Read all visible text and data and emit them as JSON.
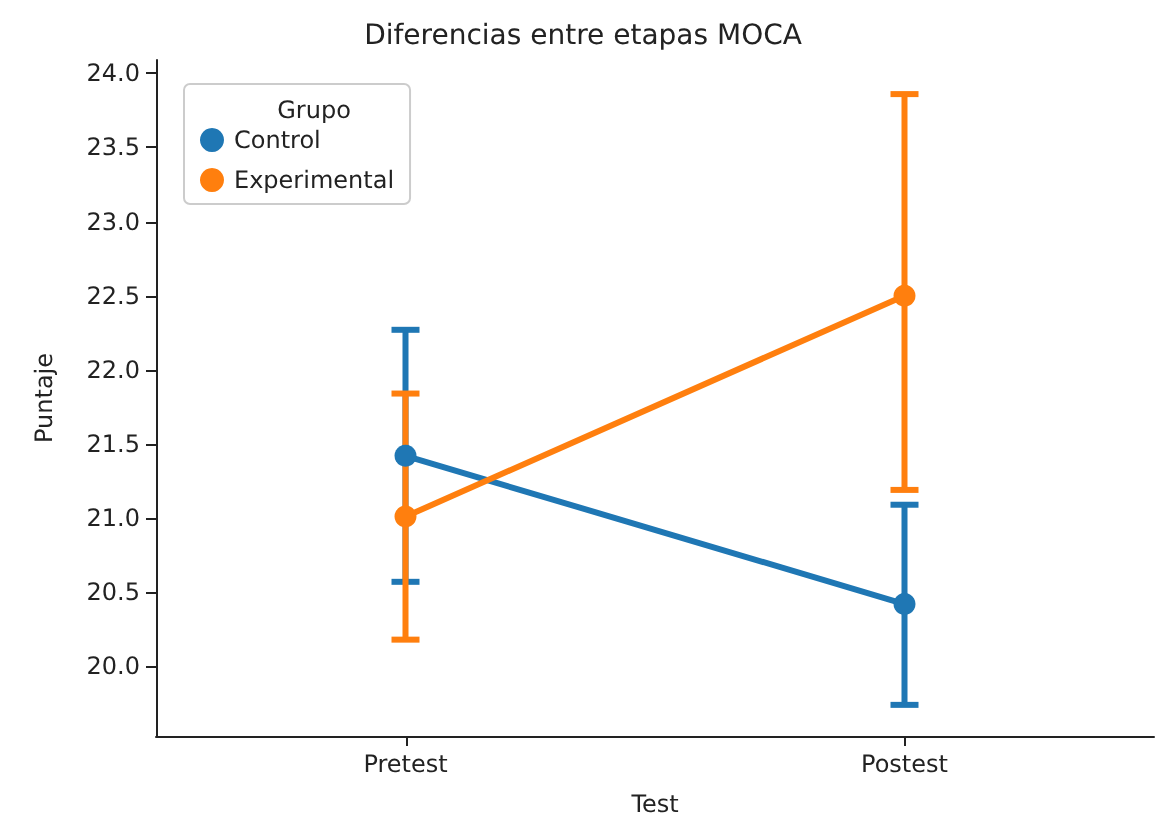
{
  "chart_data": {
    "type": "line",
    "title": "Diferencias entre etapas MOCA",
    "xlabel": "Test",
    "ylabel": "Puntaje",
    "legend_title": "Grupo",
    "categories": [
      "Pretest",
      "Postest"
    ],
    "series": [
      {
        "name": "Control",
        "color": "#1f77b4",
        "values": [
          21.42,
          20.42
        ],
        "errors": [
          [
            20.57,
            22.27
          ],
          [
            19.74,
            21.09
          ]
        ]
      },
      {
        "name": "Experimental",
        "color": "#ff7f0e",
        "values": [
          21.01,
          22.5
        ],
        "errors": [
          [
            20.18,
            21.84
          ],
          [
            21.19,
            23.86
          ]
        ]
      }
    ],
    "ylim": [
      19.53,
      24.09
    ],
    "yticks": [
      {
        "value": 20,
        "label": "20.0"
      },
      20.5,
      {
        "value": 21,
        "label": "21.0"
      },
      21.5,
      {
        "value": 22,
        "label": "22.0"
      },
      22.5,
      {
        "value": 23,
        "label": "23.0"
      },
      23.5,
      {
        "value": 24,
        "label": "24.0"
      }
    ],
    "grid": false,
    "legend": "top left",
    "marker": "circle",
    "line_style": "solid"
  }
}
